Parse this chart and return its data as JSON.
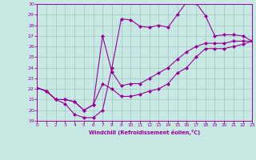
{
  "xlabel": "Windchill (Refroidissement éolien,°C)",
  "xlim": [
    0,
    23
  ],
  "ylim": [
    19,
    30
  ],
  "xticks": [
    0,
    1,
    2,
    3,
    4,
    5,
    6,
    7,
    8,
    9,
    10,
    11,
    12,
    13,
    14,
    15,
    16,
    17,
    18,
    19,
    20,
    21,
    22,
    23
  ],
  "yticks": [
    19,
    20,
    21,
    22,
    23,
    24,
    25,
    26,
    27,
    28,
    29,
    30
  ],
  "bg_color": "#c8e8e4",
  "line_color": "#990099",
  "grid_color": "#a0c8c4",
  "line1_x": [
    0,
    1,
    2,
    3,
    4,
    5,
    6,
    7,
    8,
    9,
    10,
    11,
    12,
    13,
    14,
    15,
    16,
    17,
    18,
    19,
    20,
    21,
    22,
    23
  ],
  "line1_y": [
    22.1,
    21.8,
    21.0,
    20.6,
    19.6,
    19.3,
    19.3,
    20.0,
    24.0,
    28.6,
    28.5,
    27.9,
    27.8,
    28.0,
    27.8,
    29.0,
    30.2,
    30.1,
    28.9,
    27.0,
    27.1,
    27.1,
    27.0,
    26.5
  ],
  "line2_x": [
    0,
    1,
    2,
    3,
    4,
    5,
    6,
    7,
    8,
    9,
    10,
    11,
    12,
    13,
    14,
    15,
    16,
    17,
    18,
    19,
    20,
    21,
    22,
    23
  ],
  "line2_y": [
    22.1,
    21.8,
    21.0,
    21.0,
    20.8,
    20.0,
    20.5,
    27.0,
    23.6,
    22.3,
    22.5,
    22.5,
    23.0,
    23.5,
    24.0,
    24.8,
    25.5,
    26.0,
    26.3,
    26.3,
    26.3,
    26.5,
    26.5,
    26.5
  ],
  "line3_x": [
    0,
    1,
    2,
    3,
    4,
    5,
    6,
    7,
    8,
    9,
    10,
    11,
    12,
    13,
    14,
    15,
    16,
    17,
    18,
    19,
    20,
    21,
    22,
    23
  ],
  "line3_y": [
    22.1,
    21.8,
    21.0,
    21.0,
    20.8,
    20.0,
    20.5,
    22.5,
    22.0,
    21.3,
    21.3,
    21.5,
    21.8,
    22.0,
    22.5,
    23.5,
    24.0,
    25.0,
    25.8,
    25.8,
    25.8,
    26.0,
    26.2,
    26.5
  ]
}
